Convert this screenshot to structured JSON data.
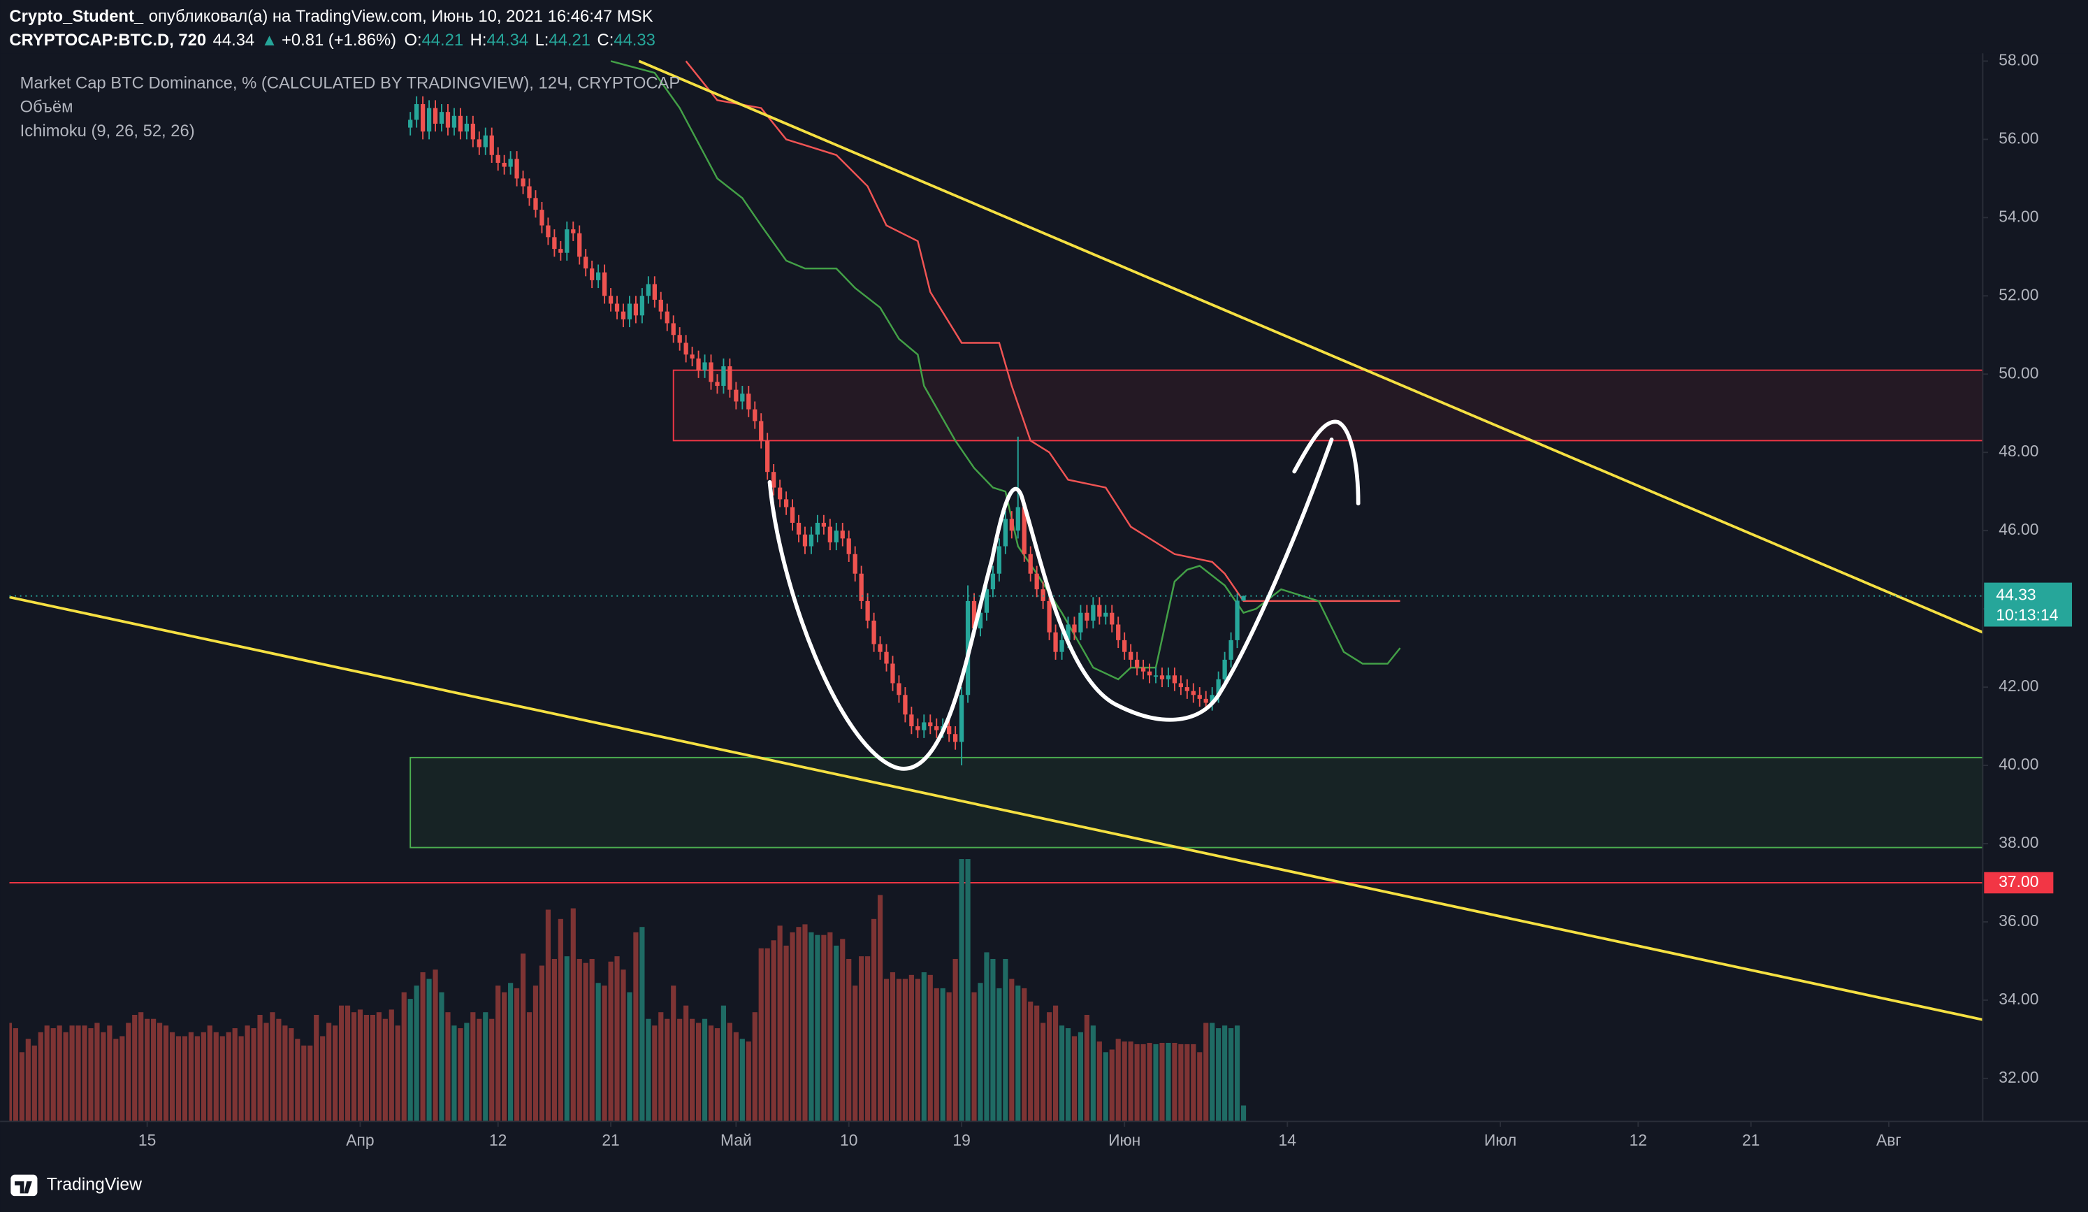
{
  "chart_data": {
    "type": "candlestick",
    "author": "Crypto_Student_",
    "published": "опубликовал(а) на TradingView.com, Июнь 10, 2021 16:46:47 MSK",
    "symbol": "CRYPTOCAP:BTC.D, 720",
    "last_price": 44.34,
    "change_arrow": "▲",
    "change": "+0.81 (+1.86%)",
    "ohlc_labels": [
      "O:",
      "H:",
      "L:",
      "C:"
    ],
    "title": "Market Cap BTC Dominance, % (CALCULATED BY TRADINGVIEW), 12Ч, CRYPTOCAP",
    "indicators": [
      "Объём",
      "Ichimoku (9, 26, 52, 26)"
    ],
    "countdown": "10:13:14",
    "brand": "TradingView",
    "xlim": [
      0,
      315
    ],
    "xticks": [
      {
        "value": 22,
        "label": "15"
      },
      {
        "value": 56,
        "label": "Апр"
      },
      {
        "value": 78,
        "label": "12"
      },
      {
        "value": 96,
        "label": "21"
      },
      {
        "value": 116,
        "label": "Май"
      },
      {
        "value": 134,
        "label": "10"
      },
      {
        "value": 152,
        "label": "19"
      },
      {
        "value": 178,
        "label": "Июн"
      },
      {
        "value": 204,
        "label": "14"
      },
      {
        "value": 238,
        "label": "Июл"
      },
      {
        "value": 260,
        "label": "12"
      },
      {
        "value": 278,
        "label": "21"
      },
      {
        "value": 300,
        "label": "Авг"
      }
    ],
    "ylim": [
      30.9,
      58.2
    ],
    "yticks": [
      {
        "value": 58,
        "label": "58.00"
      },
      {
        "value": 56,
        "label": "56.00"
      },
      {
        "value": 54,
        "label": "54.00"
      },
      {
        "value": 52,
        "label": "52.00"
      },
      {
        "value": 50,
        "label": "50.00"
      },
      {
        "value": 48,
        "label": "48.00"
      },
      {
        "value": 46,
        "label": "46.00"
      },
      {
        "value": 44,
        "label": "44.00"
      },
      {
        "value": 42,
        "label": "42.00"
      },
      {
        "value": 40,
        "label": "40.00"
      },
      {
        "value": 38,
        "label": "38.00"
      },
      {
        "value": 36,
        "label": "36.00"
      },
      {
        "value": 34,
        "label": "34.00"
      },
      {
        "value": 32,
        "label": "32.00"
      }
    ],
    "up_color": "#26a69a",
    "down_color": "#ef5350",
    "volume_up_color": "#1f6b64",
    "volume_down_color": "#7e3434",
    "candles": {
      "open": [
        null,
        null,
        null,
        null,
        null,
        null,
        null,
        null,
        null,
        null,
        null,
        null,
        null,
        null,
        null,
        null,
        null,
        null,
        null,
        null,
        null,
        null,
        null,
        null,
        null,
        null,
        null,
        null,
        null,
        null,
        null,
        null,
        null,
        null,
        null,
        null,
        null,
        null,
        null,
        null,
        null,
        null,
        null,
        null,
        null,
        null,
        null,
        null,
        null,
        null,
        null,
        null,
        null,
        null,
        null,
        null,
        null,
        null,
        null,
        null,
        null,
        null,
        null,
        null,
        56.3,
        56.5,
        56.9,
        56.2,
        56.8,
        56.4,
        56.7,
        56.3,
        56.6,
        56.2,
        56.4,
        56.0,
        55.8,
        56.1,
        55.6,
        55.4,
        55.3,
        55.5,
        55.0,
        54.8,
        54.5,
        54.2,
        53.8,
        53.5,
        53.2,
        53.1,
        53.7,
        53.6,
        53.0,
        52.7,
        52.4,
        52.6,
        52.0,
        51.8,
        51.6,
        51.4,
        51.8,
        51.5,
        52.0,
        52.3,
        51.9,
        51.6,
        51.3,
        51.0,
        50.8,
        50.5,
        50.4,
        50.1,
        50.3,
        49.8,
        49.7,
        50.2,
        49.6,
        49.3,
        49.5,
        49.1,
        48.8,
        48.3,
        47.5,
        47.1,
        46.8,
        46.6,
        46.2,
        45.9,
        45.6,
        45.9,
        46.2,
        46.1,
        45.7,
        46.0,
        45.8,
        45.4,
        44.9,
        44.2,
        43.7,
        43.1,
        42.9,
        42.6,
        42.1,
        41.8,
        41.3,
        41.0,
        40.9,
        41.1,
        41.0,
        40.9,
        41.0,
        40.8,
        40.6,
        41.8,
        44.2,
        43.5,
        43.9,
        44.5,
        44.9,
        45.6,
        46.3,
        46.0,
        46.6,
        45.4,
        44.9,
        44.5,
        44.2,
        43.4,
        42.9,
        43.2,
        43.6,
        43.4,
        43.9,
        43.7,
        44.1,
        43.8,
        43.9,
        43.6,
        43.2,
        42.9,
        42.7,
        42.5,
        42.4,
        42.3,
        42.3,
        42.2,
        42.3,
        42.1,
        42.0,
        41.9,
        41.8,
        41.7,
        41.6,
        41.8,
        42.2,
        42.7,
        43.2,
        44.21
      ],
      "high": [
        null,
        null,
        null,
        null,
        null,
        null,
        null,
        null,
        null,
        null,
        null,
        null,
        null,
        null,
        null,
        null,
        null,
        null,
        null,
        null,
        null,
        null,
        null,
        null,
        null,
        null,
        null,
        null,
        null,
        null,
        null,
        null,
        null,
        null,
        null,
        null,
        null,
        null,
        null,
        null,
        null,
        null,
        null,
        null,
        null,
        null,
        null,
        null,
        null,
        null,
        null,
        null,
        null,
        null,
        null,
        null,
        null,
        null,
        null,
        null,
        null,
        null,
        null,
        null,
        56.7,
        57.1,
        57.1,
        57.0,
        57.0,
        56.9,
        56.9,
        56.8,
        56.8,
        56.6,
        56.6,
        56.2,
        56.3,
        56.3,
        55.8,
        55.6,
        55.7,
        55.7,
        55.2,
        55.0,
        54.7,
        54.4,
        54.0,
        53.7,
        53.4,
        53.9,
        53.9,
        53.8,
        53.2,
        52.9,
        52.8,
        52.8,
        52.2,
        52.0,
        51.8,
        52.0,
        52.0,
        52.2,
        52.5,
        52.5,
        52.1,
        51.8,
        51.5,
        51.2,
        51.0,
        50.7,
        50.6,
        50.5,
        50.5,
        50.0,
        50.4,
        50.4,
        49.8,
        49.7,
        49.7,
        49.3,
        49.0,
        48.5,
        47.7,
        47.3,
        47.0,
        46.8,
        46.4,
        46.1,
        46.1,
        46.4,
        46.4,
        46.3,
        46.2,
        46.2,
        46.0,
        45.6,
        45.1,
        44.4,
        43.9,
        43.3,
        43.1,
        42.8,
        42.3,
        42.0,
        41.5,
        41.2,
        41.3,
        41.3,
        41.2,
        41.2,
        41.2,
        41.0,
        42.0,
        44.6,
        44.4,
        44.1,
        44.7,
        45.1,
        45.8,
        46.5,
        46.5,
        48.4,
        46.8,
        45.6,
        45.1,
        44.7,
        44.4,
        43.6,
        43.4,
        43.8,
        43.8,
        44.1,
        44.1,
        44.3,
        44.3,
        44.1,
        44.1,
        43.8,
        43.4,
        43.1,
        42.9,
        42.7,
        42.6,
        42.5,
        42.5,
        42.5,
        42.5,
        42.3,
        42.2,
        42.1,
        42.0,
        41.9,
        42.0,
        42.4,
        42.9,
        43.4,
        44.4,
        44.34
      ],
      "low": [
        null,
        null,
        null,
        null,
        null,
        null,
        null,
        null,
        null,
        null,
        null,
        null,
        null,
        null,
        null,
        null,
        null,
        null,
        null,
        null,
        null,
        null,
        null,
        null,
        null,
        null,
        null,
        null,
        null,
        null,
        null,
        null,
        null,
        null,
        null,
        null,
        null,
        null,
        null,
        null,
        null,
        null,
        null,
        null,
        null,
        null,
        null,
        null,
        null,
        null,
        null,
        null,
        null,
        null,
        null,
        null,
        null,
        null,
        null,
        null,
        null,
        null,
        null,
        null,
        56.1,
        56.3,
        56.0,
        56.0,
        56.2,
        56.2,
        56.1,
        56.1,
        56.0,
        56.0,
        55.8,
        55.6,
        55.6,
        55.4,
        55.2,
        55.1,
        55.1,
        54.8,
        54.6,
        54.3,
        54.0,
        53.6,
        53.3,
        53.0,
        52.9,
        52.9,
        53.4,
        52.8,
        52.5,
        52.2,
        52.2,
        51.8,
        51.6,
        51.4,
        51.2,
        51.2,
        51.3,
        51.3,
        51.8,
        51.7,
        51.4,
        51.1,
        50.8,
        50.6,
        50.3,
        50.2,
        49.9,
        49.9,
        49.6,
        49.5,
        49.5,
        49.4,
        49.1,
        49.1,
        48.9,
        48.6,
        48.1,
        47.3,
        46.9,
        46.6,
        46.4,
        46.0,
        45.7,
        45.4,
        45.4,
        45.7,
        45.9,
        45.5,
        45.5,
        45.6,
        45.2,
        44.7,
        44.0,
        43.5,
        42.9,
        42.7,
        42.4,
        41.9,
        41.6,
        41.1,
        40.8,
        40.7,
        40.7,
        40.8,
        40.7,
        40.7,
        40.6,
        40.4,
        40.0,
        41.6,
        43.3,
        43.3,
        43.7,
        44.3,
        44.7,
        45.4,
        45.8,
        45.8,
        45.2,
        44.7,
        44.3,
        44.0,
        43.2,
        42.7,
        42.7,
        43.0,
        43.2,
        43.2,
        43.5,
        43.5,
        43.6,
        43.6,
        43.4,
        43.0,
        42.7,
        42.5,
        42.3,
        42.2,
        42.1,
        42.1,
        42.0,
        42.0,
        41.9,
        41.8,
        41.7,
        41.6,
        41.5,
        41.4,
        41.4,
        41.6,
        42.0,
        42.5,
        43.0,
        44.21
      ],
      "close": [
        null,
        null,
        null,
        null,
        null,
        null,
        null,
        null,
        null,
        null,
        null,
        null,
        null,
        null,
        null,
        null,
        null,
        null,
        null,
        null,
        null,
        null,
        null,
        null,
        null,
        null,
        null,
        null,
        null,
        null,
        null,
        null,
        null,
        null,
        null,
        null,
        null,
        null,
        null,
        null,
        null,
        null,
        null,
        null,
        null,
        null,
        null,
        null,
        null,
        null,
        null,
        null,
        null,
        null,
        null,
        null,
        null,
        null,
        null,
        null,
        null,
        null,
        null,
        null,
        56.5,
        56.9,
        56.2,
        56.8,
        56.4,
        56.7,
        56.3,
        56.6,
        56.2,
        56.4,
        56.0,
        55.8,
        56.1,
        55.6,
        55.4,
        55.3,
        55.5,
        55.0,
        54.8,
        54.5,
        54.2,
        53.8,
        53.5,
        53.2,
        53.1,
        53.7,
        53.6,
        53.0,
        52.7,
        52.4,
        52.6,
        52.0,
        51.8,
        51.6,
        51.4,
        51.8,
        51.5,
        52.0,
        52.3,
        51.9,
        51.6,
        51.3,
        51.0,
        50.8,
        50.5,
        50.4,
        50.1,
        50.3,
        49.8,
        49.7,
        50.2,
        49.6,
        49.3,
        49.5,
        49.1,
        48.8,
        48.3,
        47.5,
        47.1,
        46.8,
        46.6,
        46.2,
        45.9,
        45.6,
        45.9,
        46.2,
        46.1,
        45.7,
        46.0,
        45.8,
        45.4,
        44.9,
        44.2,
        43.7,
        43.1,
        42.9,
        42.6,
        42.1,
        41.8,
        41.3,
        41.0,
        40.9,
        41.1,
        41.0,
        40.9,
        41.0,
        40.8,
        40.6,
        41.8,
        44.2,
        43.5,
        43.9,
        44.5,
        44.9,
        45.6,
        46.3,
        46.0,
        46.6,
        45.4,
        44.9,
        44.5,
        44.2,
        43.4,
        42.9,
        43.2,
        43.6,
        43.4,
        43.9,
        43.7,
        44.1,
        43.8,
        43.9,
        43.6,
        43.2,
        42.9,
        42.7,
        42.5,
        42.4,
        42.3,
        42.3,
        42.2,
        42.3,
        42.1,
        42.0,
        41.9,
        41.8,
        41.7,
        41.6,
        41.8,
        42.2,
        42.7,
        43.2,
        44.21,
        44.33
      ]
    },
    "volume": [
      74,
      70,
      52,
      62,
      57,
      67,
      72,
      70,
      72,
      67,
      72,
      72,
      72,
      70,
      74,
      67,
      72,
      62,
      64,
      74,
      80,
      82,
      77,
      77,
      74,
      72,
      67,
      64,
      64,
      67,
      64,
      67,
      72,
      67,
      64,
      67,
      70,
      64,
      72,
      70,
      80,
      74,
      82,
      77,
      72,
      70,
      62,
      57,
      57,
      80,
      64,
      74,
      72,
      87,
      87,
      82,
      84,
      80,
      80,
      82,
      77,
      84,
      72,
      97,
      92,
      102,
      112,
      107,
      114,
      97,
      82,
      72,
      70,
      74,
      82,
      77,
      82,
      77,
      102,
      97,
      104,
      100,
      126,
      82,
      102,
      117,
      159,
      122,
      152,
      124,
      160,
      122,
      119,
      122,
      104,
      102,
      120,
      124,
      114,
      97,
      142,
      146,
      77,
      72,
      82,
      77,
      102,
      77,
      87,
      77,
      74,
      77,
      72,
      70,
      87,
      74,
      67,
      62,
      60,
      82,
      130,
      130,
      136,
      147,
      132,
      142,
      146,
      148,
      142,
      140,
      140,
      142,
      132,
      137,
      122,
      102,
      124,
      124,
      152,
      170,
      107,
      112,
      107,
      107,
      110,
      107,
      112,
      110,
      100,
      100,
      97,
      122,
      197,
      197,
      97,
      104,
      127,
      122,
      100,
      122,
      107,
      102,
      100,
      90,
      87,
      74,
      82,
      87,
      72,
      70,
      64,
      67,
      80,
      72,
      60,
      52,
      54,
      62,
      60,
      60,
      58,
      58,
      59,
      58,
      59,
      59,
      59,
      58,
      58,
      58,
      52,
      74,
      74,
      70,
      72,
      70,
      72,
      12
    ],
    "ichimoku": [
      {
        "color": "#f05454",
        "x": [
          108,
          113,
          120,
          124,
          132,
          137,
          140,
          145,
          147,
          152,
          158,
          160,
          163,
          166,
          169,
          175,
          179,
          186,
          192,
          194,
          197,
          222
        ],
        "values": [
          58.0,
          57.0,
          56.8,
          56.0,
          55.6,
          54.8,
          53.8,
          53.4,
          52.1,
          50.8,
          50.8,
          49.7,
          48.3,
          48.0,
          47.3,
          47.1,
          46.1,
          45.4,
          45.2,
          44.9,
          44.2,
          44.2
        ]
      },
      {
        "color": "#43a047",
        "x": [
          96,
          103,
          107,
          109,
          113,
          117,
          120,
          124,
          127,
          132,
          135,
          139,
          142,
          145,
          146,
          151,
          154,
          157,
          159,
          161,
          164,
          168,
          173,
          177,
          179,
          183,
          186,
          188,
          190,
          194,
          197,
          199,
          203,
          209,
          213,
          216,
          220,
          222
        ],
        "values": [
          58.0,
          57.7,
          56.8,
          56.2,
          55.0,
          54.5,
          53.8,
          52.9,
          52.7,
          52.7,
          52.2,
          51.7,
          50.9,
          50.5,
          49.7,
          48.3,
          47.6,
          47.1,
          47.0,
          45.6,
          44.9,
          43.9,
          42.5,
          42.2,
          42.5,
          42.5,
          44.7,
          45.0,
          45.1,
          44.6,
          43.9,
          44.0,
          44.5,
          44.2,
          42.9,
          42.6,
          42.6,
          43.0
        ]
      }
    ],
    "trend_lines": [
      {
        "color": "#f5e042",
        "x": [
          100.5,
          315
        ],
        "values": [
          58.0,
          43.4
        ]
      },
      {
        "color": "#f5e042",
        "x": [
          0,
          315
        ],
        "values": [
          44.3,
          33.5
        ]
      }
    ],
    "zones": [
      {
        "color": "#f23645",
        "x": [
          106,
          315
        ],
        "values": [
          50.1,
          48.3
        ]
      },
      {
        "color": "#4caf50",
        "x": [
          64,
          315
        ],
        "values": [
          40.2,
          37.9
        ]
      }
    ],
    "hlines": [
      {
        "value": 37.0,
        "label": "37.00",
        "color": "#f23645"
      }
    ],
    "price_line_color": "#26a69a"
  }
}
